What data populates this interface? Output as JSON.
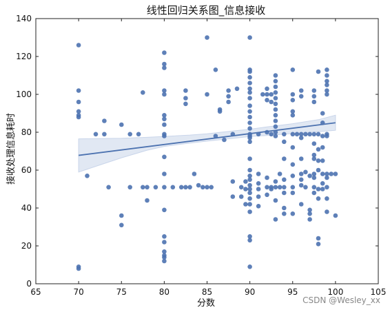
{
  "chart_data": {
    "type": "scatter",
    "title": "线性回归关系图_信息接收",
    "xlabel": "分数",
    "ylabel": "接收处理信息耗时",
    "xlim": [
      65,
      105
    ],
    "ylim": [
      0,
      140
    ],
    "xticks": [
      "65",
      "70",
      "75",
      "80",
      "85",
      "90",
      "95",
      "100",
      "105"
    ],
    "yticks": [
      "0",
      "20",
      "40",
      "60",
      "80",
      "100",
      "120",
      "140"
    ],
    "grid": false,
    "legend": "none",
    "point_color": "#4c72b0",
    "line_color": "#4c72b0",
    "band_color": "#c9d5ea",
    "regression": {
      "x": [
        70,
        100
      ],
      "y": [
        67.8,
        85.0
      ]
    },
    "confidence_band": {
      "x": [
        70,
        72,
        75,
        78,
        80,
        83,
        85,
        87,
        90,
        92,
        95,
        98,
        100
      ],
      "lower": [
        59.0,
        62.0,
        66.5,
        70.5,
        72.5,
        74.3,
        75.3,
        76.3,
        77.7,
        78.3,
        79.3,
        80.3,
        81.0
      ],
      "upper": [
        76.5,
        76.6,
        76.8,
        77.3,
        77.8,
        78.5,
        79.2,
        80.2,
        81.6,
        82.8,
        84.5,
        86.6,
        89.0
      ]
    },
    "points": [
      [
        70,
        126
      ],
      [
        70,
        102
      ],
      [
        70,
        96
      ],
      [
        70,
        91
      ],
      [
        70,
        89
      ],
      [
        70,
        88
      ],
      [
        70,
        9
      ],
      [
        70,
        8
      ],
      [
        71,
        57
      ],
      [
        72,
        79
      ],
      [
        73,
        86
      ],
      [
        73,
        79
      ],
      [
        73.5,
        51
      ],
      [
        75,
        84
      ],
      [
        75,
        36
      ],
      [
        75,
        31
      ],
      [
        76,
        79
      ],
      [
        76,
        51
      ],
      [
        77,
        79
      ],
      [
        77.5,
        101
      ],
      [
        77.5,
        51
      ],
      [
        78,
        51
      ],
      [
        78,
        44
      ],
      [
        79,
        51
      ],
      [
        80,
        122
      ],
      [
        80,
        116
      ],
      [
        80,
        114
      ],
      [
        80,
        102
      ],
      [
        80,
        100
      ],
      [
        80,
        89
      ],
      [
        80,
        87
      ],
      [
        80,
        84
      ],
      [
        80,
        79
      ],
      [
        80,
        78
      ],
      [
        80,
        67
      ],
      [
        80,
        58
      ],
      [
        80,
        51
      ],
      [
        80,
        39
      ],
      [
        80,
        25
      ],
      [
        80,
        22
      ],
      [
        80,
        17
      ],
      [
        80,
        15
      ],
      [
        80,
        14
      ],
      [
        80,
        12
      ],
      [
        81,
        51
      ],
      [
        82,
        51
      ],
      [
        82.5,
        102
      ],
      [
        82.5,
        98
      ],
      [
        82.5,
        95
      ],
      [
        82.5,
        51
      ],
      [
        83,
        51
      ],
      [
        83.5,
        58
      ],
      [
        84,
        52
      ],
      [
        84.5,
        51
      ],
      [
        85,
        130
      ],
      [
        85,
        100
      ],
      [
        85,
        51
      ],
      [
        85.5,
        51
      ],
      [
        86,
        113
      ],
      [
        86,
        78
      ],
      [
        86.5,
        92
      ],
      [
        86.5,
        91
      ],
      [
        87,
        76
      ],
      [
        87.5,
        102
      ],
      [
        87.5,
        99
      ],
      [
        87.5,
        96
      ],
      [
        88,
        79
      ],
      [
        88,
        54
      ],
      [
        88,
        46
      ],
      [
        88.5,
        103
      ],
      [
        89,
        51
      ],
      [
        89,
        46
      ],
      [
        89.5,
        54
      ],
      [
        89.5,
        50
      ],
      [
        89.5,
        42
      ],
      [
        90,
        130
      ],
      [
        90,
        113
      ],
      [
        90,
        112
      ],
      [
        90,
        109
      ],
      [
        90,
        106
      ],
      [
        90,
        103
      ],
      [
        90,
        101
      ],
      [
        90,
        98
      ],
      [
        90,
        94
      ],
      [
        90,
        91
      ],
      [
        90,
        88
      ],
      [
        90,
        85
      ],
      [
        90,
        82
      ],
      [
        90,
        79
      ],
      [
        90,
        78
      ],
      [
        90,
        77
      ],
      [
        90,
        75
      ],
      [
        90,
        66
      ],
      [
        90,
        60
      ],
      [
        90,
        57
      ],
      [
        90,
        55
      ],
      [
        90,
        52
      ],
      [
        90,
        50
      ],
      [
        90,
        48
      ],
      [
        90,
        45
      ],
      [
        90,
        42
      ],
      [
        90,
        38
      ],
      [
        90,
        25
      ],
      [
        90,
        23
      ],
      [
        90,
        9
      ],
      [
        91,
        79
      ],
      [
        91,
        58
      ],
      [
        91,
        53
      ],
      [
        91,
        50
      ],
      [
        91,
        46
      ],
      [
        91,
        41
      ],
      [
        91.5,
        100
      ],
      [
        92,
        103
      ],
      [
        92,
        100
      ],
      [
        92,
        97
      ],
      [
        92,
        80
      ],
      [
        92,
        56
      ],
      [
        92,
        51
      ],
      [
        92,
        47
      ],
      [
        92.5,
        100
      ],
      [
        92.5,
        96
      ],
      [
        92.5,
        79
      ],
      [
        92.5,
        51
      ],
      [
        92.5,
        50
      ],
      [
        93,
        110
      ],
      [
        93,
        107
      ],
      [
        93,
        104
      ],
      [
        93,
        101
      ],
      [
        93,
        98
      ],
      [
        93,
        95
      ],
      [
        93,
        92
      ],
      [
        93,
        89
      ],
      [
        93,
        86
      ],
      [
        93,
        83
      ],
      [
        93,
        80
      ],
      [
        93,
        78
      ],
      [
        93,
        54
      ],
      [
        93,
        51
      ],
      [
        93,
        44
      ],
      [
        93,
        34
      ],
      [
        93.5,
        58
      ],
      [
        93.5,
        51
      ],
      [
        94,
        79
      ],
      [
        94,
        75
      ],
      [
        94,
        66
      ],
      [
        94,
        55
      ],
      [
        94,
        51
      ],
      [
        94,
        48
      ],
      [
        94,
        40
      ],
      [
        94,
        37
      ],
      [
        95,
        113
      ],
      [
        95,
        100
      ],
      [
        95,
        97
      ],
      [
        95,
        91
      ],
      [
        95,
        89
      ],
      [
        95,
        79
      ],
      [
        95,
        72
      ],
      [
        95,
        63
      ],
      [
        95,
        57
      ],
      [
        95,
        51
      ],
      [
        95,
        48
      ],
      [
        95,
        37
      ],
      [
        95.5,
        79
      ],
      [
        96,
        102
      ],
      [
        96,
        99
      ],
      [
        96,
        79
      ],
      [
        96,
        77
      ],
      [
        96,
        66
      ],
      [
        96,
        58
      ],
      [
        96,
        55
      ],
      [
        96,
        52
      ],
      [
        96,
        42
      ],
      [
        96.5,
        79
      ],
      [
        96.5,
        59
      ],
      [
        96.5,
        51
      ],
      [
        97,
        79
      ],
      [
        97,
        57
      ],
      [
        97,
        39
      ],
      [
        97,
        37
      ],
      [
        97,
        34
      ],
      [
        97.5,
        102
      ],
      [
        97.5,
        99
      ],
      [
        97.5,
        96
      ],
      [
        97.5,
        79
      ],
      [
        97.5,
        74
      ],
      [
        97.5,
        68
      ],
      [
        97.5,
        66
      ],
      [
        97.5,
        58
      ],
      [
        97.5,
        56
      ],
      [
        97.5,
        51
      ],
      [
        97.5,
        48
      ],
      [
        98,
        112
      ],
      [
        98,
        79
      ],
      [
        98,
        71
      ],
      [
        98,
        65
      ],
      [
        98,
        60
      ],
      [
        98,
        50
      ],
      [
        98,
        45
      ],
      [
        98,
        24
      ],
      [
        98,
        21
      ],
      [
        98.5,
        90
      ],
      [
        98.5,
        85
      ],
      [
        98.5,
        78
      ],
      [
        98.5,
        72
      ],
      [
        98.5,
        65
      ],
      [
        98.5,
        58
      ],
      [
        98.5,
        53
      ],
      [
        98.5,
        50
      ],
      [
        99,
        113
      ],
      [
        99,
        110
      ],
      [
        99,
        107
      ],
      [
        99,
        105
      ],
      [
        99,
        102
      ],
      [
        99,
        100
      ],
      [
        99,
        79
      ],
      [
        99,
        78
      ],
      [
        99,
        58
      ],
      [
        99,
        56
      ],
      [
        99,
        51
      ],
      [
        99,
        45
      ],
      [
        99,
        38
      ],
      [
        99.5,
        58
      ],
      [
        100,
        58
      ],
      [
        100,
        36
      ]
    ]
  },
  "watermark": "CSDN @Wesley_xx"
}
